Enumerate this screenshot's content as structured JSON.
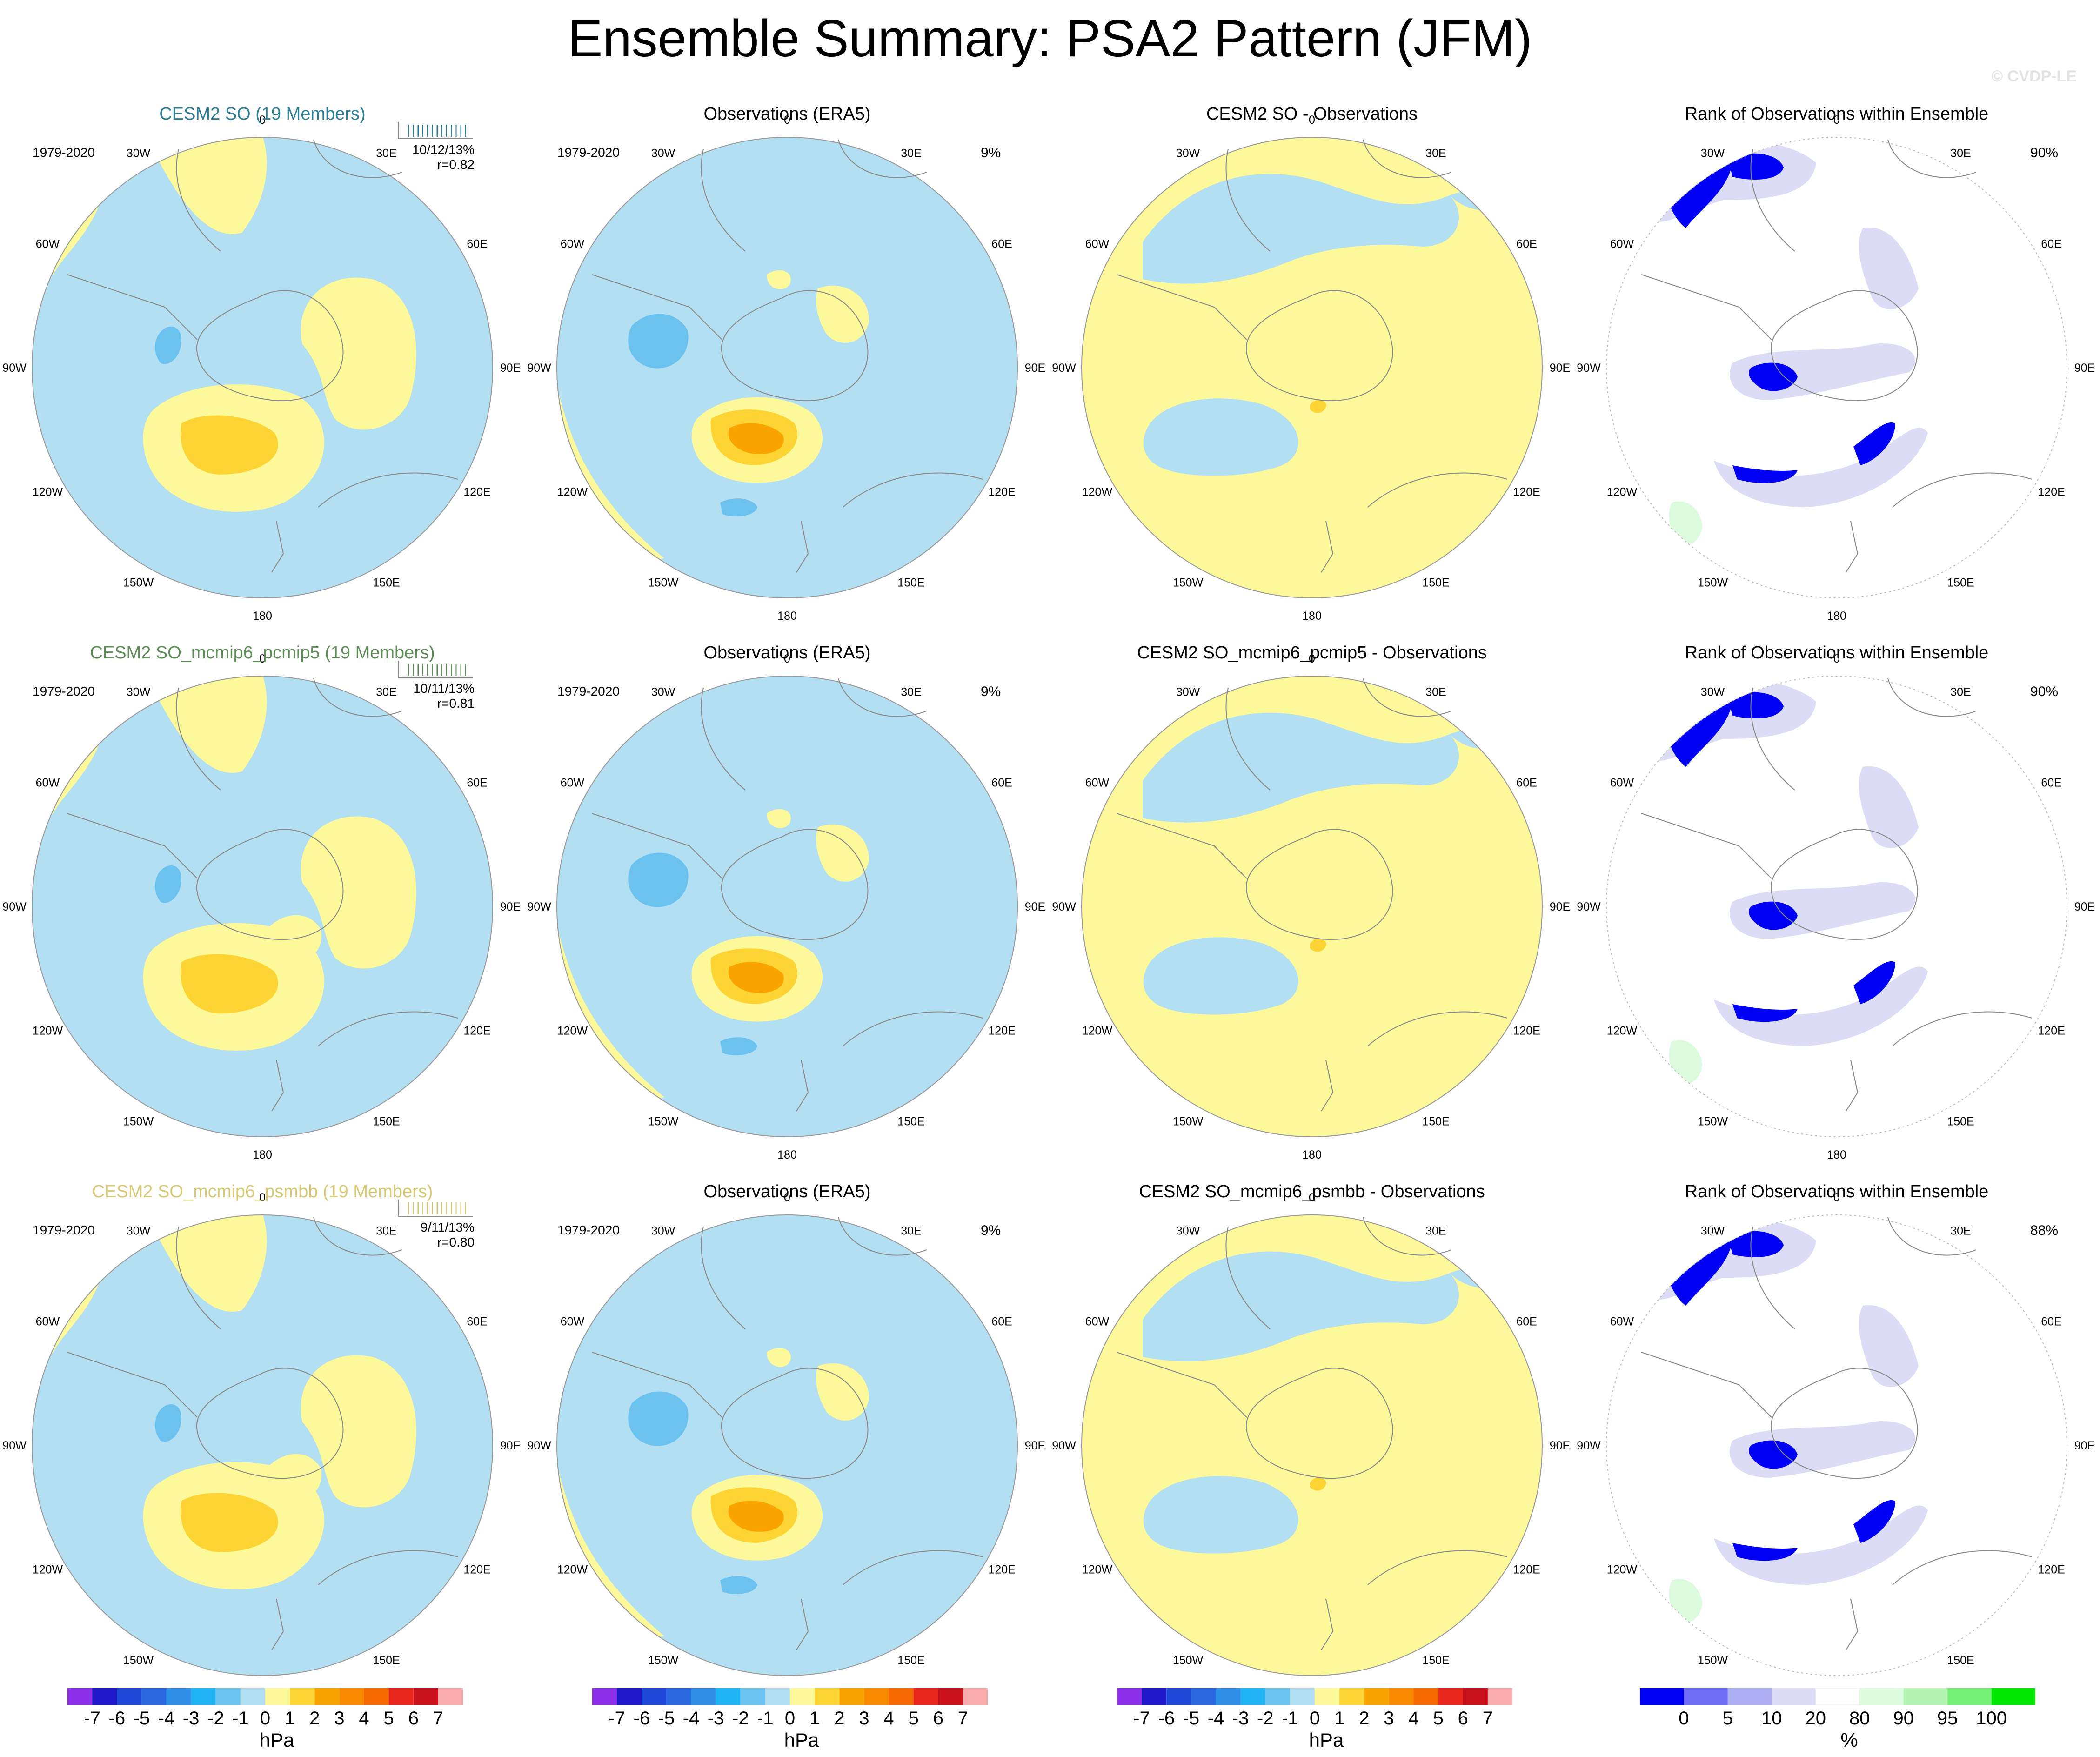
{
  "title": "Ensemble Summary: PSA2 Pattern (JFM)",
  "copyright": "© CVDP-LE",
  "period": "1979-2020",
  "lon_labels": [
    "0",
    "30E",
    "60E",
    "90E",
    "120E",
    "150E",
    "180",
    "150W",
    "120W",
    "90W",
    "60W",
    "30W"
  ],
  "colors": {
    "blue_fill": "#b3dff3",
    "yellow_fill": "#fdf899",
    "mid_blue": "#6cc2ee",
    "gold": "#fdd434",
    "orange": "#f9a400",
    "coast": "#888888"
  },
  "rows": [
    {
      "model": {
        "title": "CESM2 SO (19 Members)",
        "title_color": "#2a7d94",
        "stats_line1": "10/12/13%",
        "stats_line2": "r=0.82"
      },
      "obs": {
        "title": "Observations (ERA5)",
        "stat": "9%"
      },
      "diff": {
        "title": "CESM2 SO - Observations"
      },
      "rank": {
        "title": "Rank of Observations within Ensemble",
        "stat": "90%"
      }
    },
    {
      "model": {
        "title": "CESM2 SO_mcmip6_pcmip5 (19 Members)",
        "title_color": "#5d8c57",
        "stats_line1": "10/11/13%",
        "stats_line2": "r=0.81"
      },
      "obs": {
        "title": "Observations (ERA5)",
        "stat": "9%"
      },
      "diff": {
        "title": "CESM2 SO_mcmip6_pcmip5 - Observations"
      },
      "rank": {
        "title": "Rank of Observations within Ensemble",
        "stat": "90%"
      }
    },
    {
      "model": {
        "title": "CESM2 SO_mcmip6_psmbb (19 Members)",
        "title_color": "#d7c873",
        "stats_line1": "9/11/13%",
        "stats_line2": "r=0.80"
      },
      "obs": {
        "title": "Observations (ERA5)",
        "stat": "9%"
      },
      "diff": {
        "title": "CESM2 SO_mcmip6_psmbb - Observations"
      },
      "rank": {
        "title": "Rank of Observations within Ensemble",
        "stat": "88%"
      }
    }
  ],
  "legend_hpa": {
    "units": "hPa",
    "labels": [
      "-7",
      "-6",
      "-5",
      "-4",
      "-3",
      "-2",
      "-1",
      "0",
      "1",
      "2",
      "3",
      "4",
      "5",
      "6",
      "7"
    ],
    "colors": [
      "#8b2fe8",
      "#1e18c8",
      "#2048d8",
      "#2a68e0",
      "#3090e8",
      "#20b4f4",
      "#6cc2ee",
      "#b3dff3",
      "#fdf899",
      "#fdd434",
      "#f9a400",
      "#f98a00",
      "#f46a00",
      "#e8281c",
      "#c8101a",
      "#f9aaaa"
    ]
  },
  "legend_rank": {
    "units": "%",
    "labels": [
      "0",
      "5",
      "10",
      "20",
      "80",
      "90",
      "95",
      "100"
    ],
    "colors": [
      "#0000f6",
      "#6e6ef8",
      "#aeaef4",
      "#dcdcf6",
      "#ffffff",
      "#dcfadc",
      "#b4f4b4",
      "#78f078",
      "#00e600"
    ]
  }
}
